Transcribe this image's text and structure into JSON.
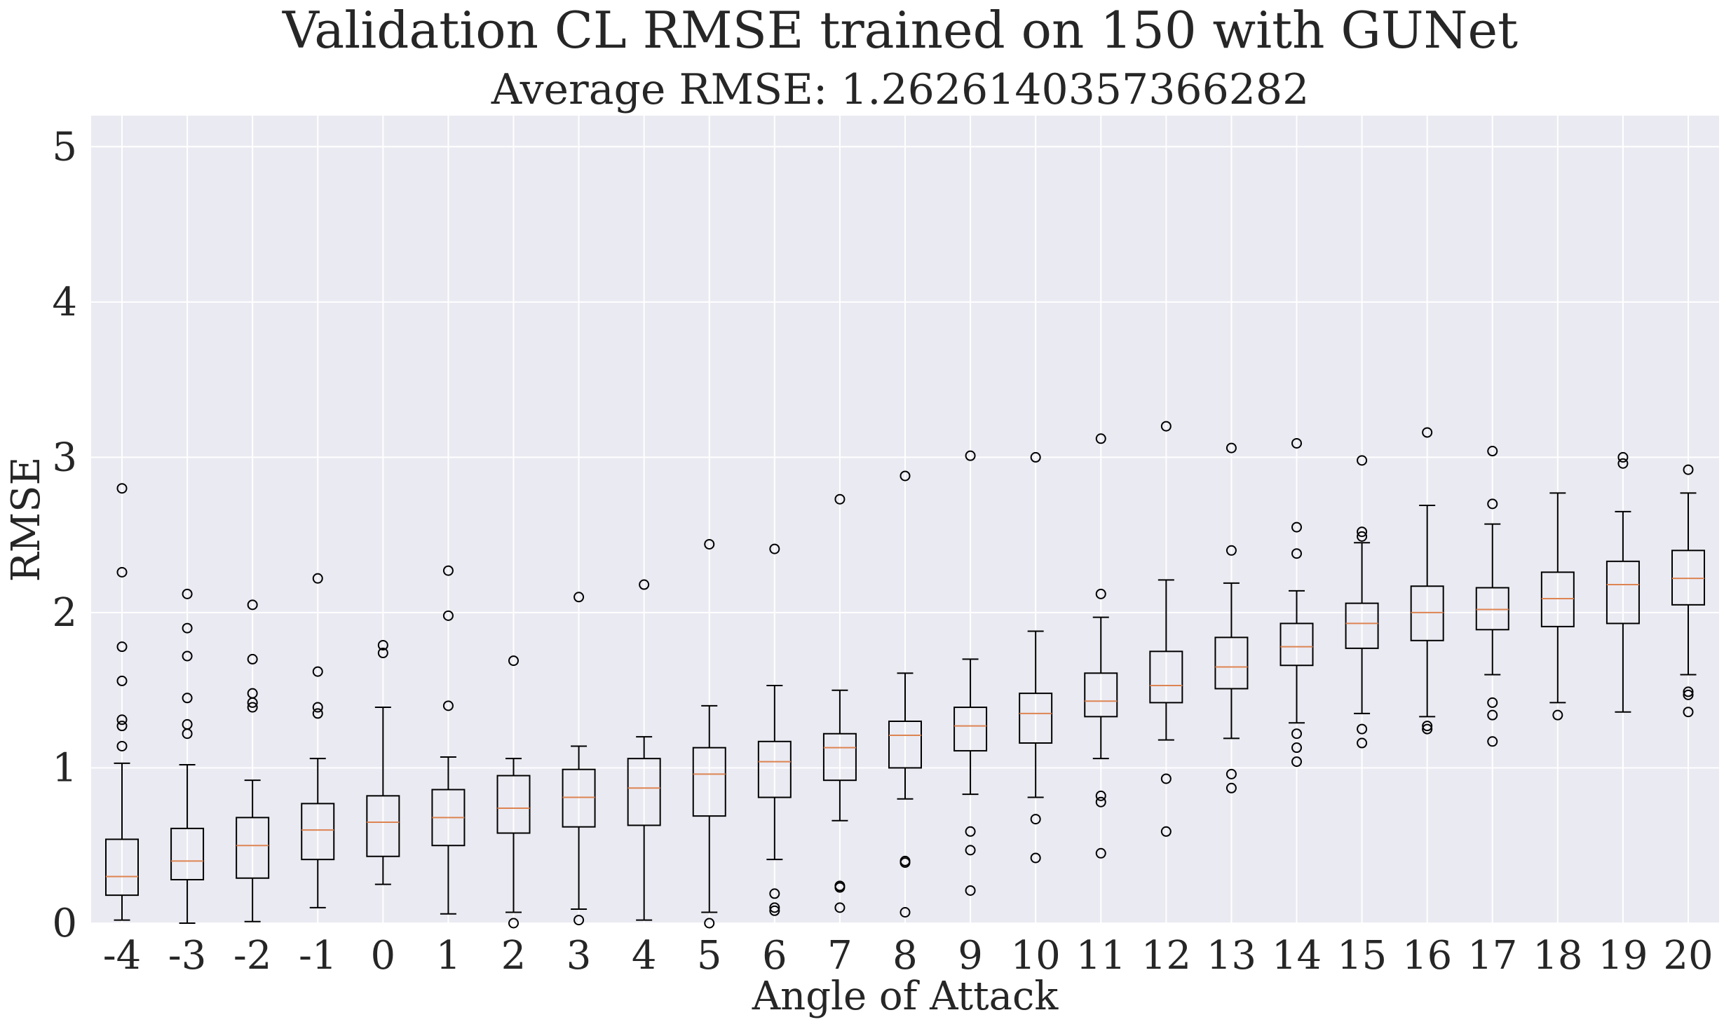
{
  "chart_data": {
    "type": "box",
    "title": "Validation CL RMSE trained on 150 with GUNet",
    "subtitle": "Average RMSE:  1.2626140357366282",
    "xlabel": "Angle of Attack",
    "ylabel": "RMSE",
    "ylim": [
      0,
      5.2
    ],
    "yticks": [
      0,
      1,
      2,
      3,
      4,
      5
    ],
    "grid": true,
    "colors": {
      "background": "#eaeaf2",
      "grid": "#ffffff",
      "box": "#000000",
      "median": "#dd8452",
      "text": "#262626"
    },
    "categories": [
      "-4",
      "-3",
      "-2",
      "-1",
      "0",
      "1",
      "2",
      "3",
      "4",
      "5",
      "6",
      "7",
      "8",
      "9",
      "10",
      "11",
      "12",
      "13",
      "14",
      "15",
      "16",
      "17",
      "18",
      "19",
      "20"
    ],
    "boxes": [
      {
        "label": "-4",
        "whislo": 0.02,
        "q1": 0.18,
        "med": 0.3,
        "q3": 0.54,
        "whishi": 1.03,
        "fliers": [
          1.14,
          1.27,
          1.31,
          1.56,
          1.78,
          2.26,
          2.8
        ]
      },
      {
        "label": "-3",
        "whislo": 0.0,
        "q1": 0.28,
        "med": 0.4,
        "q3": 0.61,
        "whishi": 1.02,
        "fliers": [
          1.22,
          1.28,
          1.45,
          1.72,
          1.9,
          2.12
        ]
      },
      {
        "label": "-2",
        "whislo": 0.01,
        "q1": 0.29,
        "med": 0.5,
        "q3": 0.68,
        "whishi": 0.92,
        "fliers": [
          1.39,
          1.42,
          1.48,
          1.7,
          2.05
        ]
      },
      {
        "label": "-1",
        "whislo": 0.1,
        "q1": 0.41,
        "med": 0.6,
        "q3": 0.77,
        "whishi": 1.06,
        "fliers": [
          1.35,
          1.39,
          1.62,
          2.22
        ]
      },
      {
        "label": "0",
        "whislo": 0.25,
        "q1": 0.43,
        "med": 0.65,
        "q3": 0.82,
        "whishi": 1.39,
        "fliers": [
          1.74,
          1.79
        ]
      },
      {
        "label": "1",
        "whislo": 0.06,
        "q1": 0.5,
        "med": 0.68,
        "q3": 0.86,
        "whishi": 1.07,
        "fliers": [
          1.4,
          1.98,
          2.27
        ]
      },
      {
        "label": "2",
        "whislo": 0.07,
        "q1": 0.58,
        "med": 0.74,
        "q3": 0.95,
        "whishi": 1.06,
        "fliers": [
          0.0,
          1.69
        ]
      },
      {
        "label": "3",
        "whislo": 0.09,
        "q1": 0.62,
        "med": 0.81,
        "q3": 0.99,
        "whishi": 1.14,
        "fliers": [
          0.02,
          2.1
        ]
      },
      {
        "label": "4",
        "whislo": 0.02,
        "q1": 0.63,
        "med": 0.87,
        "q3": 1.06,
        "whishi": 1.2,
        "fliers": [
          2.18
        ]
      },
      {
        "label": "5",
        "whislo": 0.07,
        "q1": 0.69,
        "med": 0.96,
        "q3": 1.13,
        "whishi": 1.4,
        "fliers": [
          0.0,
          2.44
        ]
      },
      {
        "label": "6",
        "whislo": 0.41,
        "q1": 0.81,
        "med": 1.04,
        "q3": 1.17,
        "whishi": 1.53,
        "fliers": [
          0.08,
          0.1,
          0.19,
          2.41
        ]
      },
      {
        "label": "7",
        "whislo": 0.66,
        "q1": 0.92,
        "med": 1.13,
        "q3": 1.22,
        "whishi": 1.5,
        "fliers": [
          0.1,
          0.23,
          0.24,
          2.73
        ]
      },
      {
        "label": "8",
        "whislo": 0.8,
        "q1": 1.0,
        "med": 1.21,
        "q3": 1.3,
        "whishi": 1.61,
        "fliers": [
          0.07,
          0.39,
          0.4,
          2.88
        ]
      },
      {
        "label": "9",
        "whislo": 0.83,
        "q1": 1.11,
        "med": 1.27,
        "q3": 1.39,
        "whishi": 1.7,
        "fliers": [
          0.21,
          0.47,
          0.59,
          3.01
        ]
      },
      {
        "label": "10",
        "whislo": 0.81,
        "q1": 1.16,
        "med": 1.35,
        "q3": 1.48,
        "whishi": 1.88,
        "fliers": [
          0.42,
          0.67,
          3.0
        ]
      },
      {
        "label": "11",
        "whislo": 1.06,
        "q1": 1.33,
        "med": 1.43,
        "q3": 1.61,
        "whishi": 1.97,
        "fliers": [
          0.45,
          0.78,
          0.82,
          2.12,
          3.12
        ]
      },
      {
        "label": "12",
        "whislo": 1.18,
        "q1": 1.42,
        "med": 1.53,
        "q3": 1.75,
        "whishi": 2.21,
        "fliers": [
          0.59,
          0.93,
          3.2
        ]
      },
      {
        "label": "13",
        "whislo": 1.19,
        "q1": 1.51,
        "med": 1.65,
        "q3": 1.84,
        "whishi": 2.19,
        "fliers": [
          0.87,
          0.96,
          2.4,
          3.06
        ]
      },
      {
        "label": "14",
        "whislo": 1.29,
        "q1": 1.66,
        "med": 1.78,
        "q3": 1.93,
        "whishi": 2.14,
        "fliers": [
          1.04,
          1.13,
          1.22,
          2.38,
          2.55,
          3.09
        ]
      },
      {
        "label": "15",
        "whislo": 1.35,
        "q1": 1.77,
        "med": 1.93,
        "q3": 2.06,
        "whishi": 2.45,
        "fliers": [
          1.16,
          1.25,
          2.49,
          2.52,
          2.98
        ]
      },
      {
        "label": "16",
        "whislo": 1.33,
        "q1": 1.82,
        "med": 2.0,
        "q3": 2.17,
        "whishi": 2.69,
        "fliers": [
          1.25,
          1.27,
          3.16
        ]
      },
      {
        "label": "17",
        "whislo": 1.6,
        "q1": 1.89,
        "med": 2.02,
        "q3": 2.16,
        "whishi": 2.57,
        "fliers": [
          1.17,
          1.34,
          1.42,
          2.7,
          3.04
        ]
      },
      {
        "label": "18",
        "whislo": 1.42,
        "q1": 1.91,
        "med": 2.09,
        "q3": 2.26,
        "whishi": 2.77,
        "fliers": [
          1.34
        ]
      },
      {
        "label": "19",
        "whislo": 1.36,
        "q1": 1.93,
        "med": 2.18,
        "q3": 2.33,
        "whishi": 2.65,
        "fliers": [
          2.96,
          3.0
        ]
      },
      {
        "label": "20",
        "whislo": 1.6,
        "q1": 2.05,
        "med": 2.22,
        "q3": 2.4,
        "whishi": 2.77,
        "fliers": [
          1.36,
          1.47,
          1.49,
          2.92
        ]
      }
    ]
  }
}
